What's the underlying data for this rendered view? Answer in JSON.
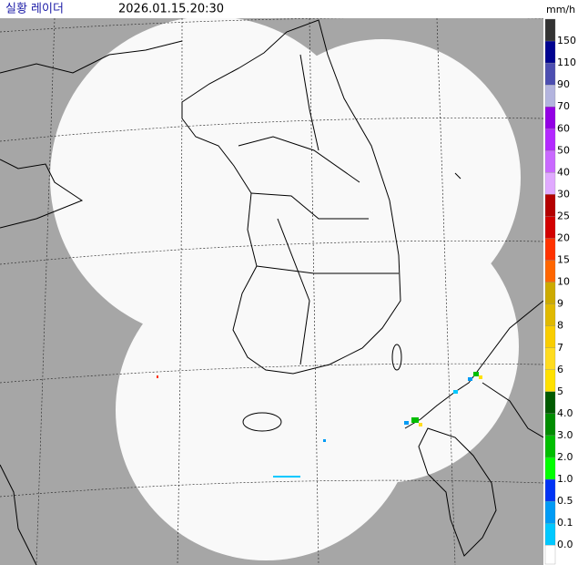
{
  "header": {
    "title": "실황 레이더",
    "timestamp": "2026.01.15.20:30",
    "unit": "mm/h"
  },
  "legend": {
    "labels": [
      "150",
      "110",
      "90",
      "70",
      "60",
      "50",
      "40",
      "30",
      "25",
      "20",
      "15",
      "10",
      "9",
      "8",
      "7",
      "6",
      "5",
      "4.0",
      "3.0",
      "2.0",
      "1.0",
      "0.5",
      "0.1",
      "0.0"
    ],
    "colors": [
      "#333333",
      "#000390",
      "#4c4eb1",
      "#b3b4de",
      "#9300e4",
      "#b329ff",
      "#c969ff",
      "#e0a9ff",
      "#b40000",
      "#d20000",
      "#ff3200",
      "#ff6600",
      "#ccaa00",
      "#e0b900",
      "#f9cd00",
      "#ffdc1f",
      "#ffe100",
      "#005a00",
      "#008c00",
      "#00be00",
      "#00ff00",
      "#0033f5",
      "#009bf5",
      "#00c8ff",
      "#ffffff"
    ]
  }
}
